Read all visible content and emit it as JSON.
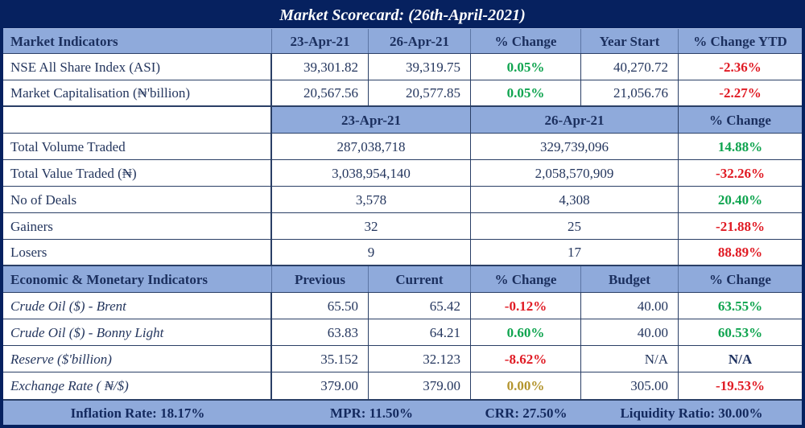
{
  "title": "Market Scorecard: (26th-April-2021)",
  "colors": {
    "frame_navy": "#06215f",
    "header_blue": "#8faadb",
    "text_navy": "#24365e",
    "positive_green": "#0fa44f",
    "negative_red": "#e01b24",
    "neutral_gold": "#b3942d"
  },
  "section1": {
    "header": {
      "label": "Market Indicators",
      "col1": "23-Apr-21",
      "col2": "26-Apr-21",
      "col3": "% Change",
      "col4": "Year Start",
      "col5": "% Change YTD"
    },
    "rows": [
      {
        "label": "NSE All Share Index (ASI)",
        "v1": "39,301.82",
        "v2": "39,319.75",
        "chg": "0.05%",
        "chg_color": "green",
        "year_start": "40,270.72",
        "ytd": "-2.36%",
        "ytd_color": "red"
      },
      {
        "label": "Market Capitalisation (₦'billion)",
        "v1": "20,567.56",
        "v2": "20,577.85",
        "chg": "0.05%",
        "chg_color": "green",
        "year_start": "21,056.76",
        "ytd": "-2.27%",
        "ytd_color": "red"
      }
    ]
  },
  "section2": {
    "header": {
      "label": "",
      "col1": "23-Apr-21",
      "col2": "26-Apr-21",
      "col3": "% Change"
    },
    "rows": [
      {
        "label": "Total Volume Traded",
        "v1": "287,038,718",
        "v2": "329,739,096",
        "chg": "14.88%",
        "chg_color": "green"
      },
      {
        "label": "Total Value Traded (₦)",
        "v1": "3,038,954,140",
        "v2": "2,058,570,909",
        "chg": "-32.26%",
        "chg_color": "red"
      },
      {
        "label": "No of Deals",
        "v1": "3,578",
        "v2": "4,308",
        "chg": "20.40%",
        "chg_color": "green"
      },
      {
        "label": "Gainers",
        "v1": "32",
        "v2": "25",
        "chg": "-21.88%",
        "chg_color": "red"
      },
      {
        "label": "Losers",
        "v1": "9",
        "v2": "17",
        "chg": "88.89%",
        "chg_color": "red"
      }
    ]
  },
  "section3": {
    "header": {
      "label": "Economic & Monetary Indicators",
      "col1": "Previous",
      "col2": "Current",
      "col3": "% Change",
      "col4": "Budget",
      "col5": "% Change"
    },
    "rows": [
      {
        "label": "Crude Oil ($) - Brent",
        "previous": "65.50",
        "current": "65.42",
        "chg": "-0.12%",
        "chg_color": "red",
        "budget": "40.00",
        "chg2": "63.55%",
        "chg2_color": "green"
      },
      {
        "label": "Crude Oil ($) - Bonny Light",
        "previous": "63.83",
        "current": "64.21",
        "chg": "0.60%",
        "chg_color": "green",
        "budget": "40.00",
        "chg2": "60.53%",
        "chg2_color": "green"
      },
      {
        "label": "Reserve ($'billion)",
        "previous": "35.152",
        "current": "32.123",
        "chg": "-8.62%",
        "chg_color": "red",
        "budget": "N/A",
        "chg2": "N/A",
        "chg2_color": "navy"
      },
      {
        "label": "Exchange Rate ( ₦/$)",
        "previous": "379.00",
        "current": "379.00",
        "chg": "0.00%",
        "chg_color": "gold",
        "budget": "305.00",
        "chg2": "-19.53%",
        "chg2_color": "red"
      }
    ]
  },
  "footer": {
    "inflation": "Inflation Rate: 18.17%",
    "mpr": "MPR: 11.50%",
    "crr": "CRR: 27.50%",
    "liquidity": "Liquidity Ratio: 30.00%"
  }
}
